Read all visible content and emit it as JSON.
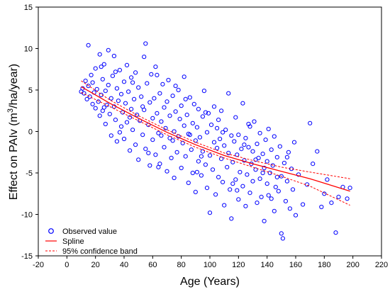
{
  "chart_data": {
    "type": "scatter",
    "title": "",
    "xlabel": "Age (Years)",
    "ylabel_main": "Effect on PAIv (m",
    "ylabel_sup": "3",
    "ylabel_tail": "/ha/year)",
    "xlim": [
      -20,
      220
    ],
    "ylim": [
      -15,
      15
    ],
    "x_ticks": [
      -20,
      0,
      20,
      40,
      60,
      80,
      100,
      120,
      140,
      160,
      180,
      200,
      220
    ],
    "y_ticks": [
      -15,
      -10,
      -5,
      0,
      5,
      10,
      15
    ],
    "grid": false,
    "legend_placement": "bottom-left",
    "colors": {
      "observed": "#0000ff",
      "spline": "#ff0000",
      "band": "#ff0000"
    },
    "legend": [
      "Observed value",
      "Spline",
      "95% confidence band"
    ],
    "series": [
      {
        "name": "Observed value",
        "marker": "circle",
        "points": [
          [
            10,
            4.8
          ],
          [
            11,
            5.2
          ],
          [
            12,
            4.6
          ],
          [
            13,
            6.1
          ],
          [
            14,
            3.9
          ],
          [
            15,
            10.4
          ],
          [
            15,
            5.5
          ],
          [
            16,
            4.2
          ],
          [
            17,
            6.8
          ],
          [
            18,
            3.3
          ],
          [
            18,
            5.9
          ],
          [
            19,
            4.7
          ],
          [
            20,
            7.6
          ],
          [
            20,
            2.8
          ],
          [
            21,
            5.1
          ],
          [
            22,
            3.6
          ],
          [
            23,
            9.3
          ],
          [
            23,
            1.9
          ],
          [
            24,
            4.4
          ],
          [
            25,
            6.3
          ],
          [
            25,
            2.5
          ],
          [
            26,
            8.1
          ],
          [
            27,
            4.9
          ],
          [
            27,
            0.9
          ],
          [
            28,
            3.2
          ],
          [
            29,
            9.8
          ],
          [
            29,
            5.6
          ],
          [
            30,
            2.1
          ],
          [
            31,
            4.0
          ],
          [
            31,
            -0.5
          ],
          [
            32,
            6.7
          ],
          [
            33,
            3.0
          ],
          [
            33,
            9.1
          ],
          [
            34,
            1.4
          ],
          [
            35,
            5.2
          ],
          [
            35,
            -1.2
          ],
          [
            36,
            3.7
          ],
          [
            37,
            7.4
          ],
          [
            38,
            0.6
          ],
          [
            38,
            4.5
          ],
          [
            39,
            2.3
          ],
          [
            40,
            6.0
          ],
          [
            40,
            -0.9
          ],
          [
            41,
            3.4
          ],
          [
            42,
            8.0
          ],
          [
            42,
            1.1
          ],
          [
            43,
            4.8
          ],
          [
            44,
            -2.3
          ],
          [
            45,
            2.7
          ],
          [
            45,
            6.5
          ],
          [
            46,
            0.2
          ],
          [
            47,
            3.9
          ],
          [
            48,
            -1.6
          ],
          [
            48,
            7.1
          ],
          [
            49,
            2.0
          ],
          [
            50,
            5.3
          ],
          [
            50,
            -3.4
          ],
          [
            51,
            1.3
          ],
          [
            52,
            4.2
          ],
          [
            53,
            -0.4
          ],
          [
            54,
            9.0
          ],
          [
            54,
            2.6
          ],
          [
            55,
            10.6
          ],
          [
            55,
            -2.1
          ],
          [
            56,
            5.8
          ],
          [
            57,
            0.8
          ],
          [
            58,
            3.5
          ],
          [
            58,
            -4.1
          ],
          [
            59,
            6.9
          ],
          [
            60,
            1.6
          ],
          [
            60,
            -1.0
          ],
          [
            61,
            4.0
          ],
          [
            62,
            -2.8
          ],
          [
            62,
            7.8
          ],
          [
            63,
            2.2
          ],
          [
            64,
            -0.2
          ],
          [
            65,
            4.6
          ],
          [
            65,
            -3.9
          ],
          [
            66,
            1.2
          ],
          [
            67,
            5.7
          ],
          [
            68,
            -1.9
          ],
          [
            68,
            2.9
          ],
          [
            69,
            0.4
          ],
          [
            70,
            -4.8
          ],
          [
            70,
            3.6
          ],
          [
            71,
            6.2
          ],
          [
            72,
            -0.8
          ],
          [
            72,
            1.9
          ],
          [
            73,
            -3.2
          ],
          [
            74,
            4.3
          ],
          [
            75,
            0.0
          ],
          [
            75,
            -5.6
          ],
          [
            76,
            2.4
          ],
          [
            77,
            -2.5
          ],
          [
            78,
            5.0
          ],
          [
            78,
            -0.6
          ],
          [
            79,
            1.5
          ],
          [
            80,
            -4.4
          ],
          [
            80,
            3.1
          ],
          [
            81,
            -1.4
          ],
          [
            82,
            6.6
          ],
          [
            82,
            0.7
          ],
          [
            83,
            -3.0
          ],
          [
            84,
            2.0
          ],
          [
            85,
            -6.2
          ],
          [
            85,
            -0.3
          ],
          [
            86,
            4.1
          ],
          [
            87,
            -2.2
          ],
          [
            88,
            1.0
          ],
          [
            88,
            -5.0
          ],
          [
            89,
            3.3
          ],
          [
            90,
            -1.1
          ],
          [
            90,
            -7.3
          ],
          [
            91,
            0.5
          ],
          [
            92,
            -3.6
          ],
          [
            92,
            2.7
          ],
          [
            93,
            -0.7
          ],
          [
            94,
            -5.3
          ],
          [
            95,
            1.8
          ],
          [
            95,
            -2.4
          ],
          [
            96,
            4.9
          ],
          [
            97,
            -4.0
          ],
          [
            98,
            -0.1
          ],
          [
            98,
            -6.8
          ],
          [
            99,
            2.2
          ],
          [
            100,
            -2.9
          ],
          [
            100,
            -9.8
          ],
          [
            101,
            0.8
          ],
          [
            102,
            -4.6
          ],
          [
            103,
            -1.3
          ],
          [
            103,
            3.0
          ],
          [
            104,
            -7.6
          ],
          [
            105,
            -2.0
          ],
          [
            105,
            0.4
          ],
          [
            106,
            -5.5
          ],
          [
            107,
            -0.9
          ],
          [
            108,
            -3.3
          ],
          [
            108,
            2.5
          ],
          [
            109,
            -6.1
          ],
          [
            110,
            -1.7
          ],
          [
            110,
            -8.9
          ],
          [
            111,
            0.2
          ],
          [
            112,
            -4.3
          ],
          [
            113,
            -2.6
          ],
          [
            113,
            4.6
          ],
          [
            114,
            -7.0
          ],
          [
            115,
            -0.5
          ],
          [
            115,
            -10.5
          ],
          [
            116,
            -3.7
          ],
          [
            117,
            -1.2
          ],
          [
            118,
            -5.8
          ],
          [
            118,
            1.7
          ],
          [
            119,
            -2.8
          ],
          [
            120,
            -8.2
          ],
          [
            120,
            -0.4
          ],
          [
            121,
            -4.9
          ],
          [
            122,
            -2.1
          ],
          [
            123,
            -6.6
          ],
          [
            123,
            3.4
          ],
          [
            124,
            -3.5
          ],
          [
            125,
            -0.8
          ],
          [
            125,
            -9.0
          ],
          [
            126,
            -5.2
          ],
          [
            127,
            -1.9
          ],
          [
            128,
            -7.4
          ],
          [
            128,
            0.6
          ],
          [
            129,
            -3.9
          ],
          [
            130,
            -6.0
          ],
          [
            130,
            -2.4
          ],
          [
            131,
            1.2
          ],
          [
            132,
            -4.6
          ],
          [
            133,
            -8.6
          ],
          [
            133,
            -1.5
          ],
          [
            134,
            -3.2
          ],
          [
            135,
            -5.7
          ],
          [
            135,
            -0.2
          ],
          [
            136,
            -7.9
          ],
          [
            137,
            -2.7
          ],
          [
            138,
            -4.4
          ],
          [
            138,
            -10.8
          ],
          [
            139,
            -1.0
          ],
          [
            140,
            -6.3
          ],
          [
            140,
            -3.6
          ],
          [
            141,
            0.3
          ],
          [
            142,
            -5.0
          ],
          [
            143,
            -8.1
          ],
          [
            143,
            -2.2
          ],
          [
            144,
            -4.1
          ],
          [
            145,
            -9.6
          ],
          [
            145,
            -0.6
          ],
          [
            146,
            -6.7
          ],
          [
            147,
            -3.1
          ],
          [
            148,
            -7.2
          ],
          [
            149,
            -1.8
          ],
          [
            150,
            -5.4
          ],
          [
            150,
            -12.3
          ],
          [
            151,
            -12.9
          ],
          [
            152,
            -3.8
          ],
          [
            153,
            -8.4
          ],
          [
            154,
            -6.0
          ],
          [
            155,
            -2.5
          ],
          [
            156,
            -9.3
          ],
          [
            157,
            -4.5
          ],
          [
            158,
            -7.0
          ],
          [
            159,
            -1.3
          ],
          [
            160,
            -10.1
          ],
          [
            162,
            -5.2
          ],
          [
            165,
            -8.8
          ],
          [
            168,
            -6.4
          ],
          [
            170,
            1.0
          ],
          [
            172,
            -3.9
          ],
          [
            175,
            -2.4
          ],
          [
            178,
            -9.1
          ],
          [
            180,
            -7.5
          ],
          [
            182,
            -5.8
          ],
          [
            185,
            -8.6
          ],
          [
            188,
            -12.2
          ],
          [
            190,
            -7.9
          ],
          [
            193,
            -6.7
          ],
          [
            196,
            -8.1
          ],
          [
            198,
            -6.8
          ],
          [
            37,
            -0.1
          ],
          [
            46,
            5.9
          ],
          [
            57,
            -2.6
          ],
          [
            63,
            6.8
          ],
          [
            74,
            -1.1
          ],
          [
            83,
            3.9
          ],
          [
            94,
            -3.0
          ],
          [
            106,
            1.4
          ],
          [
            116,
            -6.3
          ],
          [
            124,
            -1.6
          ],
          [
            132,
            -3.4
          ],
          [
            141,
            -7.7
          ],
          [
            147,
            -5.5
          ],
          [
            26,
            2.9
          ],
          [
            34,
            7.2
          ],
          [
            44,
            1.7
          ],
          [
            53,
            3.0
          ],
          [
            64,
            -4.3
          ],
          [
            76,
            5.5
          ],
          [
            86,
            -0.4
          ],
          [
            97,
            2.3
          ],
          [
            109,
            -0.1
          ],
          [
            119,
            -7.1
          ],
          [
            127,
            0.9
          ],
          [
            137,
            -5.0
          ],
          [
            154,
            -3.1
          ],
          [
            24,
            7.8
          ],
          [
            66,
            -0.5
          ],
          [
            91,
            -4.9
          ]
        ]
      },
      {
        "name": "Spline",
        "points": [
          [
            10,
            5.4
          ],
          [
            30,
            3.4
          ],
          [
            50,
            1.6
          ],
          [
            70,
            -0.1
          ],
          [
            90,
            -1.6
          ],
          [
            110,
            -2.9
          ],
          [
            130,
            -3.9
          ],
          [
            150,
            -4.8
          ],
          [
            170,
            -5.7
          ],
          [
            198,
            -7.2
          ]
        ]
      },
      {
        "name": "95% confidence band",
        "upper": [
          [
            10,
            6.1
          ],
          [
            30,
            3.8
          ],
          [
            50,
            1.9
          ],
          [
            70,
            0.2
          ],
          [
            90,
            -1.3
          ],
          [
            110,
            -2.6
          ],
          [
            130,
            -3.5
          ],
          [
            150,
            -4.3
          ],
          [
            170,
            -4.9
          ],
          [
            198,
            -5.7
          ]
        ],
        "lower": [
          [
            10,
            4.7
          ],
          [
            30,
            3.0
          ],
          [
            50,
            1.3
          ],
          [
            70,
            -0.4
          ],
          [
            90,
            -1.9
          ],
          [
            110,
            -3.2
          ],
          [
            130,
            -4.3
          ],
          [
            150,
            -5.4
          ],
          [
            170,
            -6.6
          ],
          [
            198,
            -8.9
          ]
        ]
      }
    ]
  }
}
